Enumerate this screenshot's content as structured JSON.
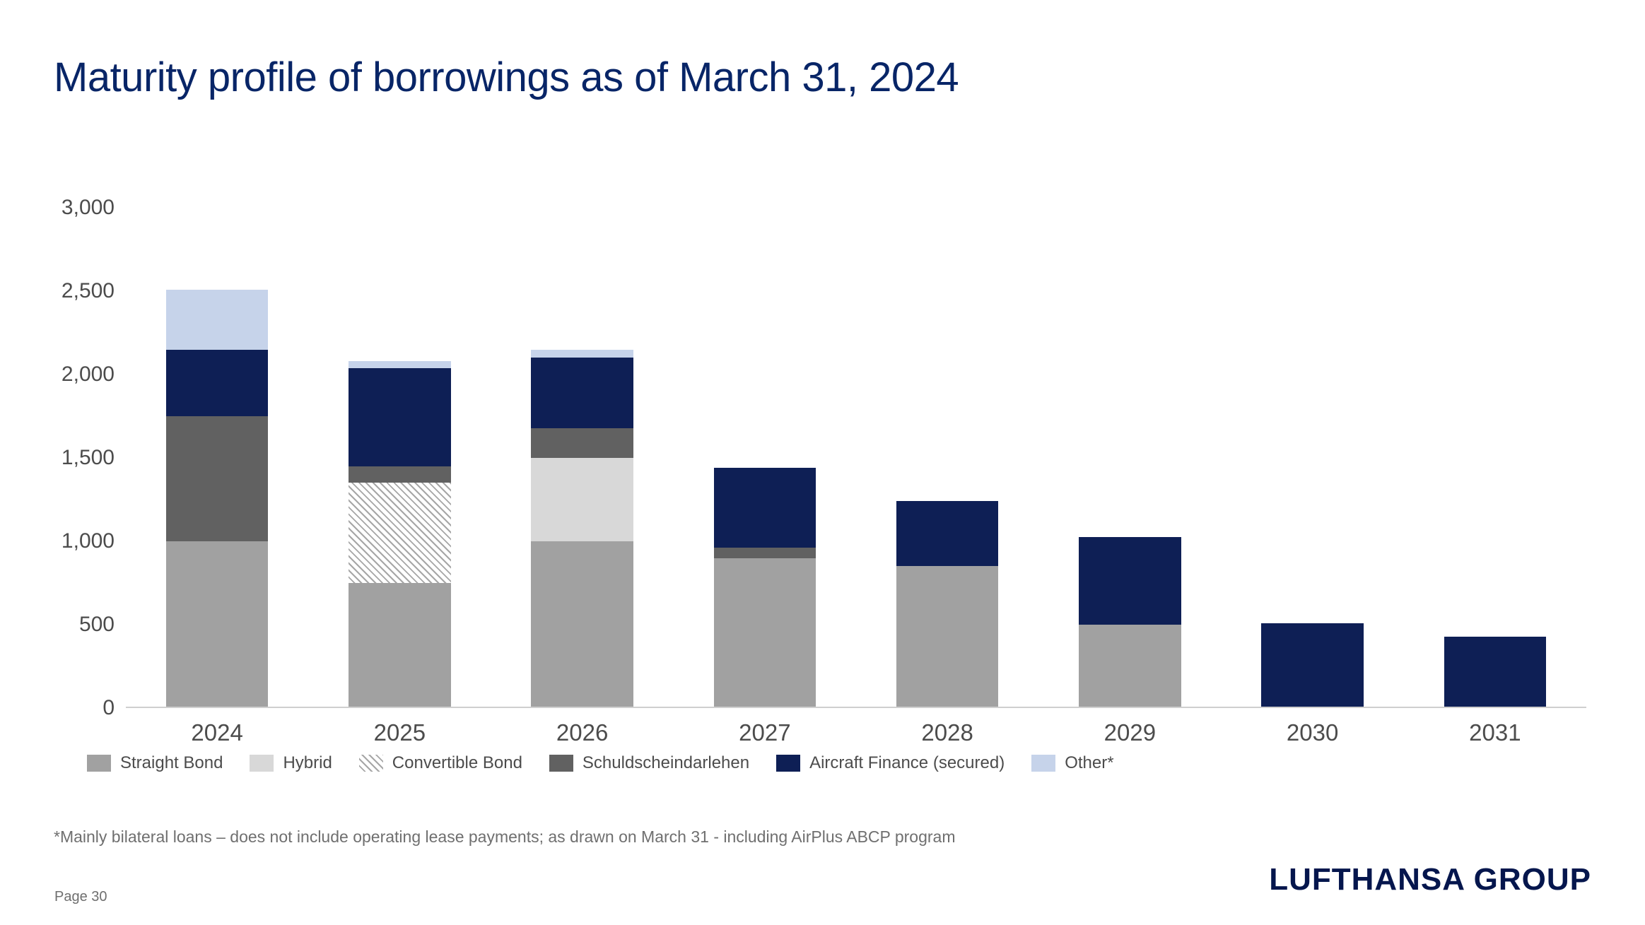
{
  "page": {
    "title": "Maturity profile of borrowings as of March 31, 2024",
    "footnote": "*Mainly bilateral loans – does not include operating lease payments; as drawn on March 31 - including AirPlus ABCP program",
    "page_number": "Page 30",
    "logo": "LUFTHANSA GROUP"
  },
  "colors": {
    "title": "#082567",
    "logo": "#05164d",
    "axis_text": "#4c4c4c",
    "baseline": "#cfcfcf"
  },
  "chart_data": {
    "type": "bar",
    "stacked": true,
    "title": "Maturity profile of borrowings as of March 31, 2024",
    "xlabel": "",
    "ylabel": "",
    "ylim": [
      0,
      3000
    ],
    "yticks": [
      0,
      500,
      1000,
      1500,
      2000,
      2500,
      3000
    ],
    "ytick_labels": [
      "0",
      "500",
      "1,000",
      "1,500",
      "2,000",
      "2,500",
      "3,000"
    ],
    "grid": false,
    "legend_position": "bottom",
    "categories": [
      "2024",
      "2025",
      "2026",
      "2027",
      "2028",
      "2029",
      "2030",
      "2031"
    ],
    "series": [
      {
        "name": "Straight Bond",
        "key": "straight-bond",
        "color": "#a1a1a1",
        "values": [
          1000,
          750,
          1000,
          900,
          850,
          500,
          0,
          0
        ]
      },
      {
        "name": "Hybrid",
        "key": "hybrid",
        "color": "#d8d8d8",
        "values": [
          0,
          0,
          500,
          0,
          0,
          0,
          0,
          0
        ]
      },
      {
        "name": "Convertible Bond",
        "key": "convertible-bond",
        "hatch": true,
        "hatch_color": "#a6a6a6",
        "values": [
          0,
          600,
          0,
          0,
          0,
          0,
          0,
          0
        ]
      },
      {
        "name": "Schuldscheindarlehen",
        "key": "schuldscheindarlehen",
        "color": "#616161",
        "values": [
          750,
          100,
          180,
          60,
          0,
          0,
          0,
          0
        ]
      },
      {
        "name": "Aircraft Finance (secured)",
        "key": "aircraft-finance-secured",
        "color": "#0e1f55",
        "values": [
          400,
          590,
          420,
          480,
          390,
          525,
          510,
          430
        ]
      },
      {
        "name": "Other*",
        "key": "other",
        "color": "#c6d3ea",
        "values": [
          360,
          40,
          50,
          0,
          0,
          0,
          0,
          0
        ]
      }
    ]
  }
}
